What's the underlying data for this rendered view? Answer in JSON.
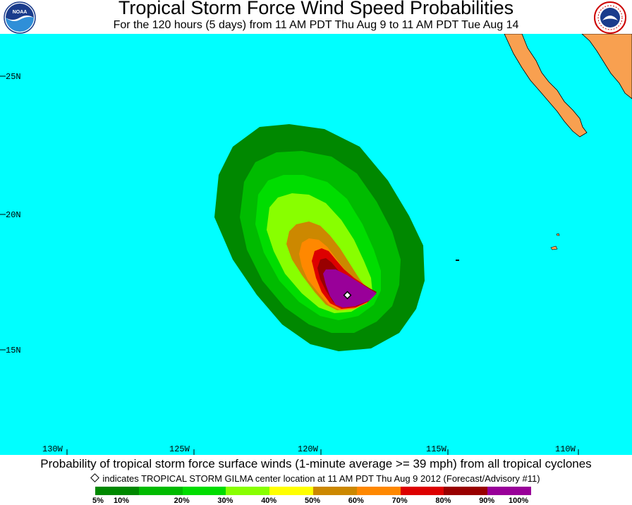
{
  "header": {
    "title": "Tropical Storm Force Wind Speed Probabilities",
    "subtitle": "For the 120 hours (5 days) from 11 AM PDT Thu Aug 9 to 11 AM PDT Tue Aug 14",
    "left_logo": "noaa-logo",
    "right_logo": "nws-logo",
    "left_logo_text": "NOAA",
    "right_logo_text": "NATIONAL WEATHER SERVICE"
  },
  "map": {
    "ocean_color": "#00ffff",
    "land_color": "#f8a050",
    "lat_labels": [
      "25N",
      "20N",
      "15N"
    ],
    "lon_labels": [
      "130W",
      "125W",
      "120W",
      "115W",
      "110W"
    ],
    "storm_center_marker": "diamond"
  },
  "footer": {
    "caption": "Probability of tropical storm force surface winds (1-minute average >= 39 mph) from all tropical cyclones",
    "note": "indicates TROPICAL STORM GILMA center location at 11 AM PDT Thu Aug 9 2012 (Forecast/Advisory #11)"
  },
  "legend": {
    "colors": [
      "#008800",
      "#00bb00",
      "#00dd00",
      "#88ff00",
      "#ffff00",
      "#cc8800",
      "#ff8800",
      "#dd0000",
      "#990000",
      "#990099"
    ],
    "labels": [
      "5%",
      "10%",
      "20%",
      "30%",
      "40%",
      "50%",
      "60%",
      "70%",
      "80%",
      "90%",
      "100%"
    ]
  }
}
